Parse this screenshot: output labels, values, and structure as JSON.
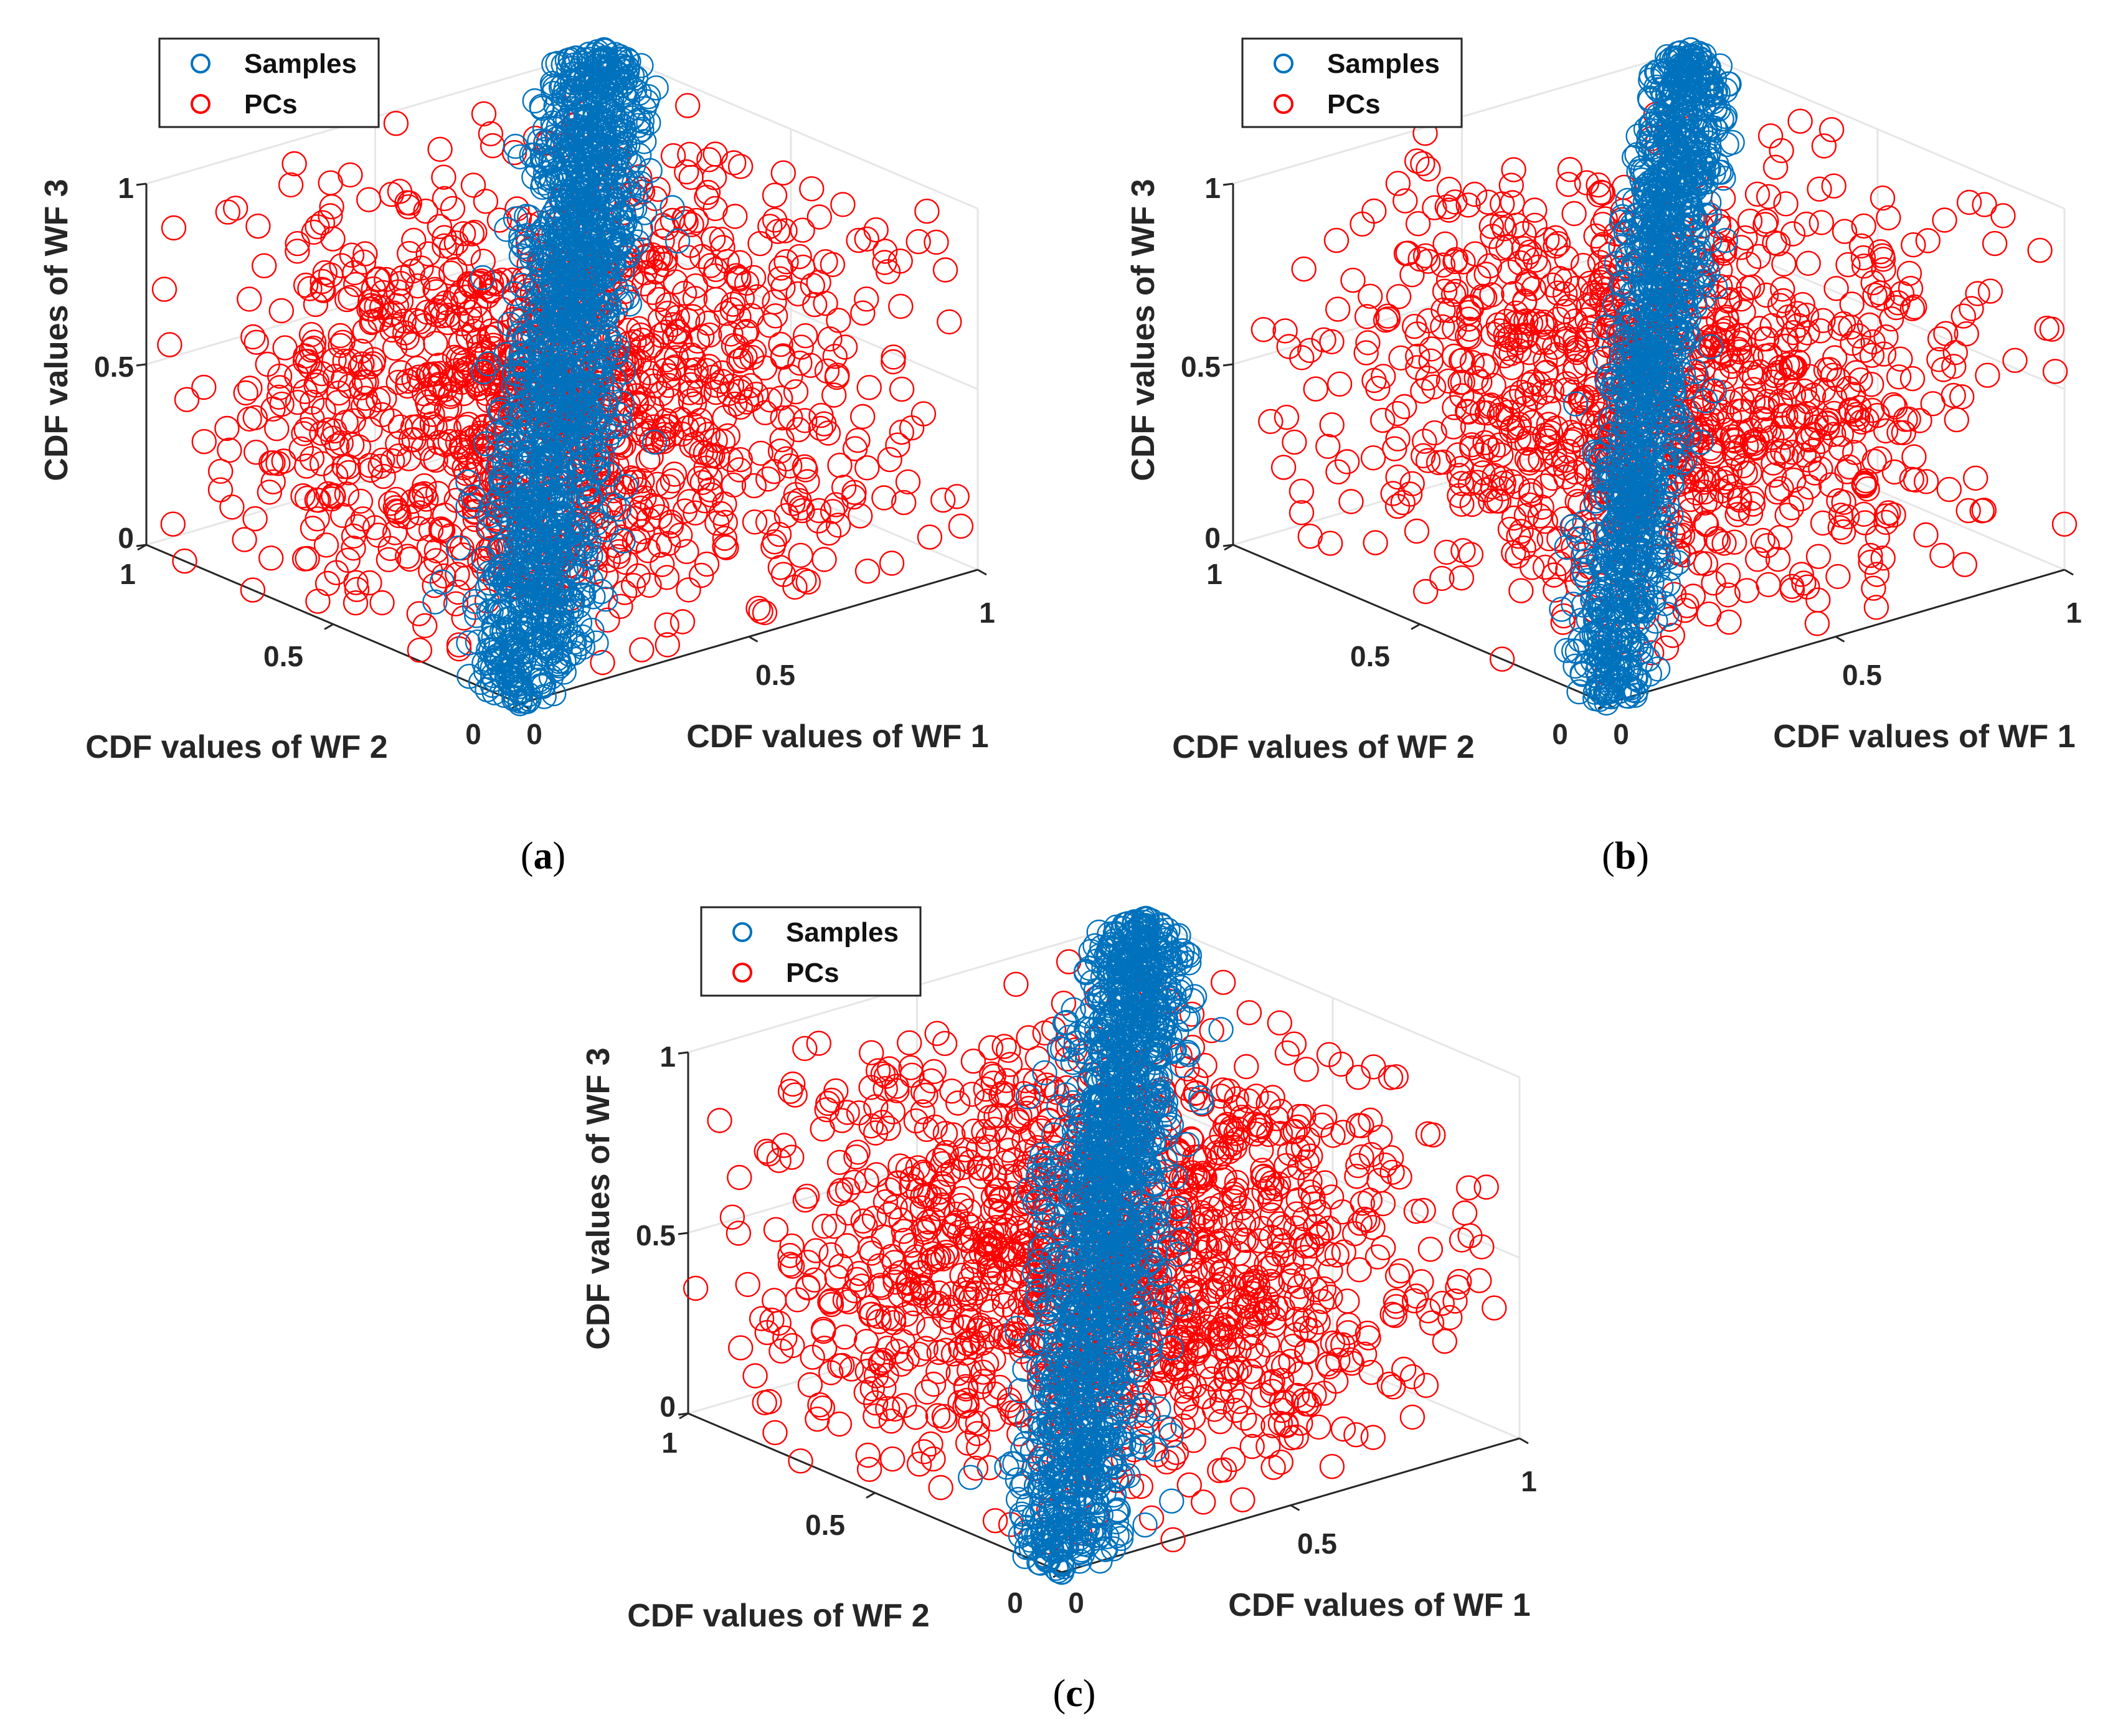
{
  "colors": {
    "samples": "#0072BD",
    "pcs": "#FF0000",
    "grid": "#e6e6e6",
    "axis": "#262626"
  },
  "chart_data": [
    {
      "type": "scatter",
      "projection": "3d",
      "caption_letter": "a",
      "legend": [
        {
          "label": "Samples",
          "color": "#0072BD"
        },
        {
          "label": "PCs",
          "color": "#FF0000"
        }
      ],
      "xlabel": "CDF values of WF 1",
      "ylabel": "CDF values of WF 2",
      "zlabel": "CDF values of WF 3",
      "xlim": [
        0,
        1
      ],
      "ylim": [
        0,
        1
      ],
      "zlim": [
        0,
        1
      ],
      "xticks": [
        "0",
        "0.5",
        "1"
      ],
      "yticks": [
        "0",
        "0.5",
        "1"
      ],
      "zticks": [
        "0",
        "0.5",
        "1"
      ],
      "grid": true,
      "series": [
        {
          "name": "Samples",
          "marker": "open-circle",
          "color": "#0072BD",
          "count": 1500,
          "description": "Strongly correlated samples concentrated along the diagonal from (0,0,0) to (1,1,1)"
        },
        {
          "name": "PCs",
          "marker": "open-circle",
          "color": "#FF0000",
          "count": 1300,
          "description": "Principal-component points spread across the cube"
        }
      ],
      "sample_points": {
        "samples": [
          [
            0.02,
            0.03,
            0.01
          ],
          [
            0.1,
            0.12,
            0.09
          ],
          [
            0.25,
            0.22,
            0.27
          ],
          [
            0.4,
            0.43,
            0.38
          ],
          [
            0.55,
            0.52,
            0.57
          ],
          [
            0.7,
            0.73,
            0.68
          ],
          [
            0.85,
            0.83,
            0.87
          ],
          [
            0.97,
            0.98,
            0.99
          ]
        ],
        "pcs": [
          [
            0.1,
            0.9,
            0.95
          ],
          [
            0.9,
            0.15,
            0.9
          ],
          [
            0.5,
            0.6,
            0.3
          ],
          [
            0.2,
            0.8,
            0.4
          ],
          [
            0.8,
            0.3,
            0.6
          ],
          [
            0.4,
            0.2,
            0.8
          ],
          [
            0.6,
            0.7,
            0.1
          ],
          [
            0.3,
            0.4,
            0.55
          ]
        ]
      }
    },
    {
      "type": "scatter",
      "projection": "3d",
      "caption_letter": "b",
      "legend": [
        {
          "label": "Samples",
          "color": "#0072BD"
        },
        {
          "label": "PCs",
          "color": "#FF0000"
        }
      ],
      "xlabel": "CDF values of WF 1",
      "ylabel": "CDF values of WF 2",
      "zlabel": "CDF values of WF 3",
      "xlim": [
        0,
        1
      ],
      "ylim": [
        0,
        1
      ],
      "zlim": [
        0,
        1
      ],
      "xticks": [
        "0",
        "0.5",
        "1"
      ],
      "yticks": [
        "0",
        "0.5",
        "1"
      ],
      "zticks": [
        "0",
        "0.5",
        "1"
      ],
      "grid": true,
      "series": [
        {
          "name": "Samples",
          "marker": "open-circle",
          "color": "#0072BD",
          "count": 1200,
          "description": "Samples concentrated along the main diagonal with a narrow spread"
        },
        {
          "name": "PCs",
          "marker": "open-circle",
          "color": "#FF0000",
          "count": 1100,
          "description": "PC points spread widely and centred around the middle of the cube"
        }
      ],
      "sample_points": {
        "samples": [
          [
            0.03,
            0.02,
            0.02
          ],
          [
            0.15,
            0.14,
            0.17
          ],
          [
            0.35,
            0.33,
            0.36
          ],
          [
            0.5,
            0.52,
            0.49
          ],
          [
            0.65,
            0.66,
            0.63
          ],
          [
            0.82,
            0.8,
            0.84
          ],
          [
            0.96,
            0.97,
            0.98
          ]
        ],
        "pcs": [
          [
            0.05,
            0.95,
            0.9
          ],
          [
            0.95,
            0.1,
            0.85
          ],
          [
            0.5,
            0.5,
            0.4
          ],
          [
            0.3,
            0.7,
            0.3
          ],
          [
            0.7,
            0.3,
            0.35
          ],
          [
            0.45,
            0.55,
            0.1
          ],
          [
            0.2,
            0.3,
            0.6
          ]
        ]
      }
    },
    {
      "type": "scatter",
      "projection": "3d",
      "caption_letter": "c",
      "legend": [
        {
          "label": "Samples",
          "color": "#0072BD"
        },
        {
          "label": "PCs",
          "color": "#FF0000"
        }
      ],
      "xlabel": "CDF values of WF 1",
      "ylabel": "CDF values of WF 2",
      "zlabel": "CDF values of WF 3",
      "xlim": [
        0,
        1
      ],
      "ylim": [
        0,
        1
      ],
      "zlim": [
        0,
        1
      ],
      "xticks": [
        "0",
        "0.5",
        "1"
      ],
      "yticks": [
        "0",
        "0.5",
        "1"
      ],
      "zticks": [
        "0",
        "0.5",
        "1"
      ],
      "grid": true,
      "series": [
        {
          "name": "Samples",
          "marker": "open-circle",
          "color": "#0072BD",
          "count": 1500,
          "description": "Samples concentrated along the main diagonal"
        },
        {
          "name": "PCs",
          "marker": "open-circle",
          "color": "#FF0000",
          "count": 1400,
          "description": "PC points dense across the cube, forming two lobes either side of the diagonal"
        }
      ],
      "sample_points": {
        "samples": [
          [
            0.02,
            0.02,
            0.03
          ],
          [
            0.18,
            0.2,
            0.17
          ],
          [
            0.38,
            0.36,
            0.4
          ],
          [
            0.55,
            0.57,
            0.54
          ],
          [
            0.72,
            0.7,
            0.74
          ],
          [
            0.88,
            0.9,
            0.87
          ],
          [
            0.98,
            0.97,
            0.99
          ]
        ],
        "pcs": [
          [
            0.1,
            0.85,
            0.95
          ],
          [
            0.92,
            0.12,
            0.88
          ],
          [
            0.25,
            0.75,
            0.4
          ],
          [
            0.75,
            0.25,
            0.45
          ],
          [
            0.5,
            0.5,
            0.7
          ],
          [
            0.6,
            0.4,
            0.2
          ],
          [
            0.35,
            0.65,
            0.15
          ]
        ]
      }
    }
  ]
}
